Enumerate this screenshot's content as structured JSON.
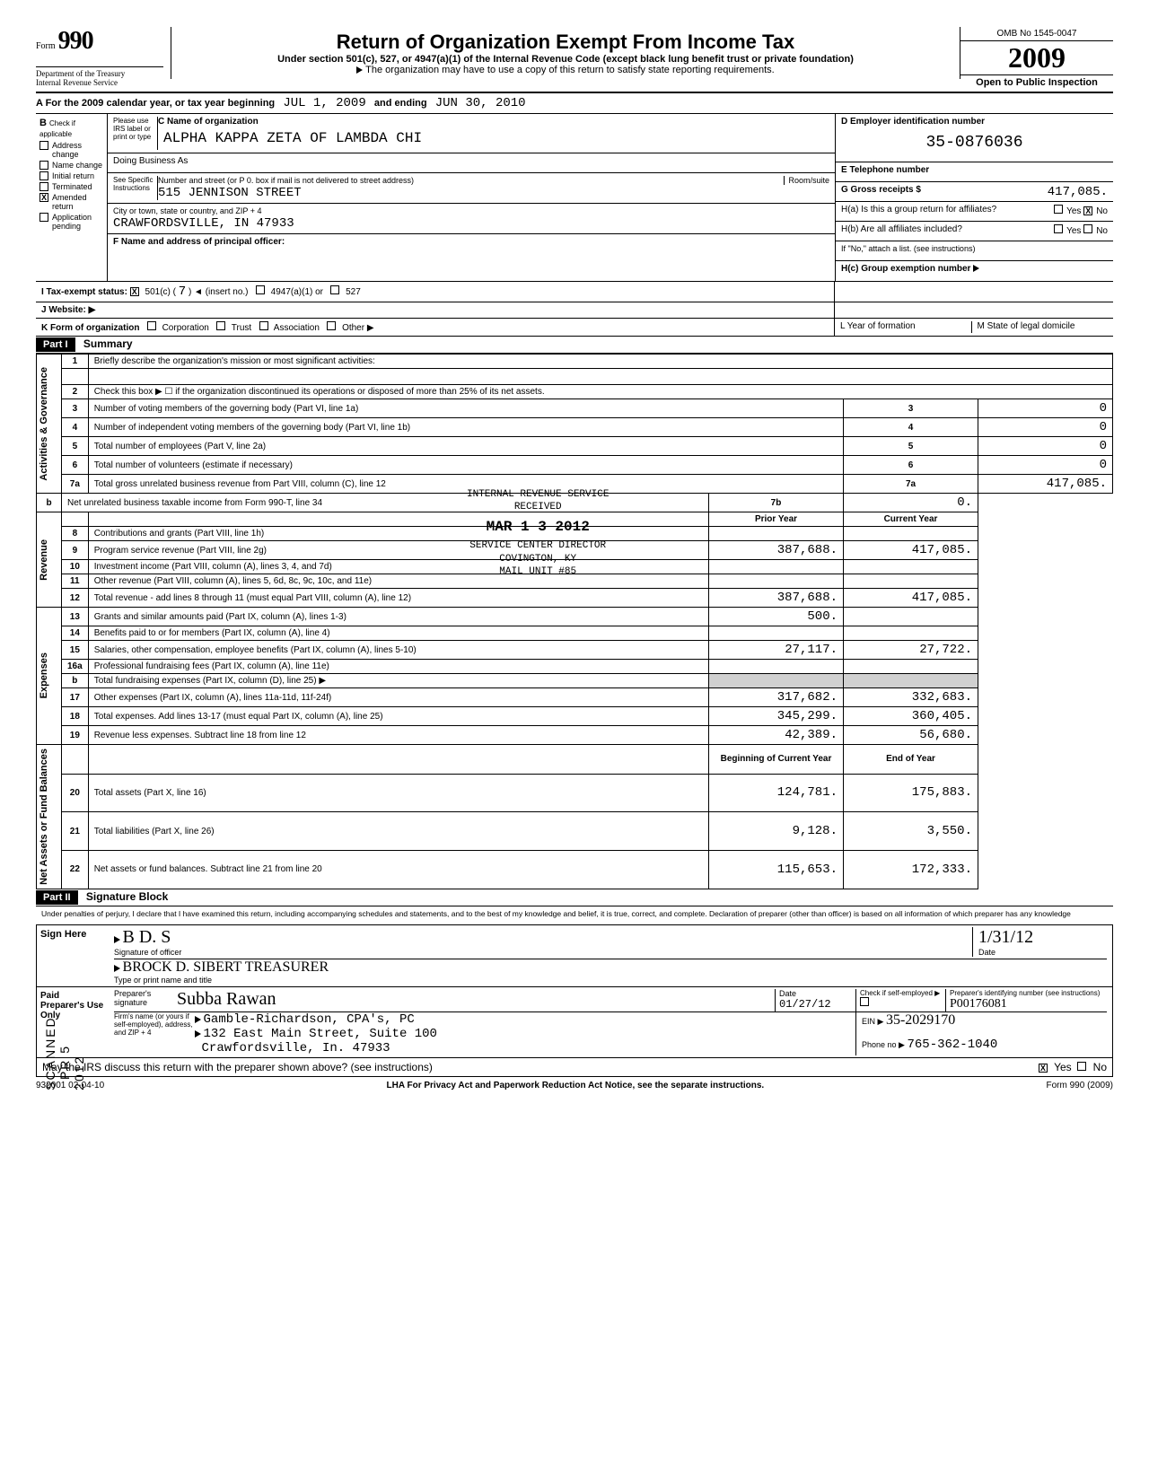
{
  "header": {
    "form_prefix": "Form",
    "form_number": "990",
    "dept1": "Department of the Treasury",
    "dept2": "Internal Revenue Service",
    "title": "Return of Organization Exempt From Income Tax",
    "subtitle": "Under section 501(c), 527, or 4947(a)(1) of the Internal Revenue Code (except black lung benefit trust or private foundation)",
    "note": "The organization may have to use a copy of this return to satisfy state reporting requirements.",
    "omb": "OMB No 1545-0047",
    "year": "2009",
    "inspection": "Open to Public Inspection"
  },
  "row_a": {
    "prefix": "A  For the 2009 calendar year, or tax year beginning",
    "begin": "JUL 1, 2009",
    "mid": "and ending",
    "end": "JUN 30, 2010"
  },
  "col_b": {
    "header": "B",
    "check_if": "Check if applicable",
    "please": "Please use IRS label or print or type",
    "see": "See Specific Instructions",
    "items": [
      {
        "label": "Address change",
        "checked": false
      },
      {
        "label": "Name change",
        "checked": false
      },
      {
        "label": "Initial return",
        "checked": false
      },
      {
        "label": "Terminated",
        "checked": false
      },
      {
        "label": "Amended return",
        "checked": true
      },
      {
        "label": "Application pending",
        "checked": false
      }
    ]
  },
  "col_c": {
    "name_label": "C Name of organization",
    "name": "ALPHA KAPPA ZETA OF LAMBDA CHI",
    "dba_label": "Doing Business As",
    "street_label": "Number and street (or P 0. box if mail is not delivered to street address)",
    "room_label": "Room/suite",
    "street": "515 JENNISON STREET",
    "city_label": "City or town, state or country, and ZIP + 4",
    "city": "CRAWFORDSVILLE, IN  47933",
    "officer_label": "F Name and address of principal officer:"
  },
  "col_d": {
    "ein_label": "D  Employer identification number",
    "ein": "35-0876036",
    "phone_label": "E  Telephone number",
    "gross_label": "G  Gross receipts $",
    "gross": "417,085.",
    "h_a": "H(a) Is this a group return for affiliates?",
    "h_b": "H(b) Are all affiliates included?",
    "yes": "Yes",
    "no": "No",
    "h_a_no_checked": true,
    "h_note": "If \"No,\" attach a list. (see instructions)",
    "h_c": "H(c) Group exemption number"
  },
  "status": {
    "i_label": "I  Tax-exempt status:",
    "i_501c": "501(c) (",
    "i_num": "7",
    "i_insert": ")   ◄  (insert no.)",
    "i_4947": "4947(a)(1) or",
    "i_527": "527",
    "j_label": "J  Website: ▶",
    "k_label": "K  Form of organization",
    "k_corp": "Corporation",
    "k_trust": "Trust",
    "k_assoc": "Association",
    "k_other": "Other ▶",
    "l_label": "L  Year of formation",
    "m_label": "M State of legal domicile"
  },
  "part1": {
    "header": "Part I",
    "title": "Summary",
    "sections": [
      {
        "tab": "Activities & Governance",
        "rows": [
          {
            "n": "1",
            "label": "Briefly describe the organization's mission or most significant activities:",
            "type": "text"
          },
          {
            "n": "2",
            "label": "Check this box ▶ ☐ if the organization discontinued its operations or disposed of more than 25% of its net assets.",
            "type": "text"
          },
          {
            "n": "3",
            "label": "Number of voting members of the governing body (Part VI, line 1a)",
            "box": "3",
            "val": "0"
          },
          {
            "n": "4",
            "label": "Number of independent voting members of the governing body (Part VI, line 1b)",
            "box": "4",
            "val": "0"
          },
          {
            "n": "5",
            "label": "Total number of employees (Part V, line 2a)",
            "box": "5",
            "val": "0"
          },
          {
            "n": "6",
            "label": "Total number of volunteers (estimate if necessary)",
            "box": "6",
            "val": "0"
          },
          {
            "n": "7a",
            "label": "Total gross unrelated business revenue from Part VIII, column (C), line 12",
            "box": "7a",
            "val": "417,085."
          },
          {
            "n": "b",
            "label": "Net unrelated business taxable income from Form 990-T, line 34",
            "box": "7b",
            "val": "0."
          }
        ]
      },
      {
        "tab": "Revenue",
        "header_prior": "Prior Year",
        "header_curr": "Current Year",
        "rows": [
          {
            "n": "8",
            "label": "Contributions and grants (Part VIII, line 1h)",
            "prior": "",
            "curr": ""
          },
          {
            "n": "9",
            "label": "Program service revenue (Part VIII, line 2g)",
            "prior": "387,688.",
            "curr": "417,085."
          },
          {
            "n": "10",
            "label": "Investment income (Part VIII, column (A), lines 3, 4, and 7d)",
            "prior": "",
            "curr": ""
          },
          {
            "n": "11",
            "label": "Other revenue (Part VIII, column (A), lines 5, 6d, 8c, 9c, 10c, and 11e)",
            "prior": "",
            "curr": ""
          },
          {
            "n": "12",
            "label": "Total revenue - add lines 8 through 11 (must equal Part VIII, column (A), line 12)",
            "prior": "387,688.",
            "curr": "417,085."
          }
        ]
      },
      {
        "tab": "Expenses",
        "rows": [
          {
            "n": "13",
            "label": "Grants and similar amounts paid (Part IX, column (A), lines 1-3)",
            "prior": "500.",
            "curr": ""
          },
          {
            "n": "14",
            "label": "Benefits paid to or for members (Part IX, column (A), line 4)",
            "prior": "",
            "curr": ""
          },
          {
            "n": "15",
            "label": "Salaries, other compensation, employee benefits (Part IX, column (A), lines 5-10)",
            "prior": "27,117.",
            "curr": "27,722."
          },
          {
            "n": "16a",
            "label": "Professional fundraising fees (Part IX, column (A), line 11e)",
            "prior": "",
            "curr": ""
          },
          {
            "n": "b",
            "label": "Total fundraising expenses (Part IX, column (D), line 25)   ▶",
            "prior": "shaded",
            "curr": "shaded"
          },
          {
            "n": "17",
            "label": "Other expenses (Part IX, column (A), lines 11a-11d, 11f-24f)",
            "prior": "317,682.",
            "curr": "332,683."
          },
          {
            "n": "18",
            "label": "Total expenses. Add lines 13-17 (must equal Part IX, column (A), line 25)",
            "prior": "345,299.",
            "curr": "360,405."
          },
          {
            "n": "19",
            "label": "Revenue less expenses. Subtract line 18 from line 12",
            "prior": "42,389.",
            "curr": "56,680."
          }
        ]
      },
      {
        "tab": "Net Assets or Fund Balances",
        "header_prior": "Beginning of Current Year",
        "header_curr": "End of Year",
        "rows": [
          {
            "n": "20",
            "label": "Total assets (Part X, line 16)",
            "prior": "124,781.",
            "curr": "175,883."
          },
          {
            "n": "21",
            "label": "Total liabilities (Part X, line 26)",
            "prior": "9,128.",
            "curr": "3,550."
          },
          {
            "n": "22",
            "label": "Net assets or fund balances. Subtract line 21 from line 20",
            "prior": "115,653.",
            "curr": "172,333."
          }
        ]
      }
    ]
  },
  "stamp": {
    "line1": "INTERNAL REVENUE SERVICE",
    "line2": "RECEIVED",
    "date": "MAR 1 3 2012",
    "line3": "SERVICE CENTER DIRECTOR",
    "line4": "COVINGTON, KY",
    "line5": "MAIL UNIT #85"
  },
  "part2": {
    "header": "Part II",
    "title": "Signature Block",
    "perjury": "Under penalties of perjury, I declare that I have examined this return, including accompanying schedules and statements, and to the best of my knowledge and belief, it is true, correct, and complete. Declaration of preparer (other than officer) is based on all information of which preparer has any knowledge",
    "sign_here": "Sign Here",
    "sig_officer": "Signature of officer",
    "date_label": "Date",
    "sig_date": "1/31/12",
    "name_title": "BROCK D. SIBERT    TREASURER",
    "type_print": "Type or print name and title",
    "paid": "Paid Preparer's Use Only",
    "prep_sig": "Preparer's signature",
    "prep_date": "01/27/12",
    "self_emp": "Check if self-employed ▶",
    "ptin_label": "Preparer's identifying number (see instructions)",
    "ptin": "P00176081",
    "firm_label": "Firm's name (or yours if self-employed), address, and ZIP + 4",
    "firm1": "Gamble-Richardson, CPA's, PC",
    "firm2": "132 East Main Street, Suite 100",
    "firm3": "Crawfordsville, In. 47933",
    "ein_label": "EIN ▶",
    "ein": "35-2029170",
    "phone_label": "Phone no ▶",
    "phone": "765-362-1040",
    "discuss": "May the IRS discuss this return with the preparer shown above? (see instructions)",
    "discuss_yes": true
  },
  "footer": {
    "left": "932001 02-04-10",
    "mid": "LHA  For Privacy Act and Paperwork Reduction Act Notice, see the separate instructions.",
    "right": "Form 990 (2009)"
  },
  "side": {
    "scanned": "SCANNED",
    "date": "PR 5 2012"
  }
}
